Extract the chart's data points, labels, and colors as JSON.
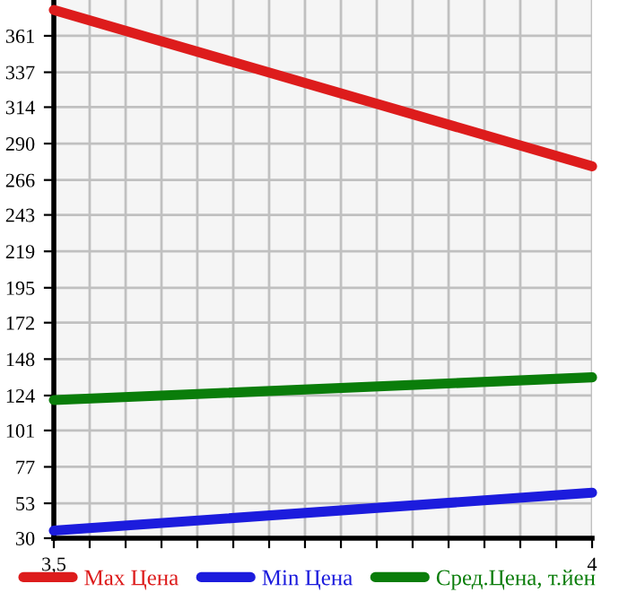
{
  "chart_data": {
    "type": "line",
    "x": [
      3.5,
      4
    ],
    "series": [
      {
        "name": "Max Цена",
        "color": "#dd1c1c",
        "values": [
          378,
          275
        ]
      },
      {
        "name": "Min Цена",
        "color": "#1c1cdd",
        "values": [
          35,
          60
        ]
      },
      {
        "name": "Сред.Цена, т.йен",
        "color": "#0a7d0a",
        "values": [
          121,
          136
        ]
      }
    ],
    "xlim": [
      3.5,
      4
    ],
    "xticks": [
      {
        "value": 3.5,
        "label": "3,5"
      },
      {
        "value": 3.5333,
        "label": null
      },
      {
        "value": 3.5667,
        "label": null
      },
      {
        "value": 3.6,
        "label": null
      },
      {
        "value": 3.6333,
        "label": null
      },
      {
        "value": 3.6667,
        "label": null
      },
      {
        "value": 3.7,
        "label": null
      },
      {
        "value": 3.7333,
        "label": null
      },
      {
        "value": 3.7667,
        "label": null
      },
      {
        "value": 3.8,
        "label": null
      },
      {
        "value": 3.8333,
        "label": null
      },
      {
        "value": 3.8667,
        "label": null
      },
      {
        "value": 3.9,
        "label": null
      },
      {
        "value": 3.9333,
        "label": null
      },
      {
        "value": 3.9667,
        "label": null
      },
      4
    ],
    "ylim": [
      30,
      384.6
    ],
    "yticks": [
      30,
      53,
      77,
      101,
      124,
      148,
      172,
      195,
      219,
      243,
      266,
      290,
      314,
      337,
      361
    ],
    "grid": true,
    "legend": "bottom",
    "marker": "none",
    "line_style": "solid"
  }
}
